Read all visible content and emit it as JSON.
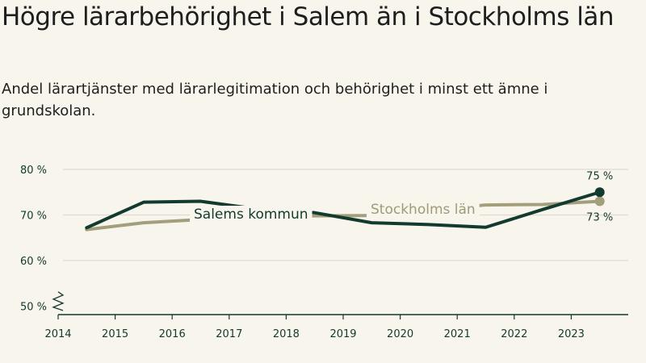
{
  "header": {
    "title": "Högre lärarbehörighet i Salem än i Stockholms län",
    "subtitle": "Andel lärartjänster med lärarlegitimation och behörighet i minst ett ämne i grundskolan."
  },
  "colors": {
    "background": "#f8f5ec",
    "salem": "#123a2e",
    "stockholm": "#a39e7c",
    "grid": "#dcdad2",
    "axis": "#123a2e"
  },
  "chart_data": {
    "type": "line",
    "title": "Högre lärarbehörighet i Salem än i Stockholms län",
    "subtitle": "Andel lärartjänster med lärarlegitimation och behörighet i minst ett ämne i grundskolan.",
    "xlabel": "",
    "ylabel": "",
    "xlim": [
      2014,
      2024
    ],
    "ylim": [
      49,
      80
    ],
    "x_ticks": [
      2014,
      2015,
      2016,
      2017,
      2018,
      2019,
      2020,
      2021,
      2022,
      2023
    ],
    "x_tick_labels": [
      "2014",
      "2015",
      "2016",
      "2017",
      "2018",
      "2019",
      "2020",
      "2021",
      "2022",
      "2023"
    ],
    "y_ticks": [
      50,
      60,
      70,
      80
    ],
    "y_tick_labels": [
      "50 %",
      "60 %",
      "70 %",
      "80 %"
    ],
    "axis_break": true,
    "grid": true,
    "series": [
      {
        "name": "Stockholms län",
        "label": "Stockholms län",
        "x": [
          2014.5,
          2015.5,
          2016.5,
          2017.5,
          2018.5,
          2019.5,
          2020.5,
          2021.5,
          2022.5,
          2023.5
        ],
        "values": [
          66.8,
          68.3,
          69.0,
          69.5,
          69.8,
          69.9,
          71.0,
          72.2,
          72.3,
          73.0
        ],
        "end_label": "73 %"
      },
      {
        "name": "Salems kommun",
        "label": "Salems kommun",
        "x": [
          2014.5,
          2015.5,
          2016.5,
          2017.5,
          2018.5,
          2019.5,
          2020.5,
          2021.5,
          2022.5,
          2023.5
        ],
        "values": [
          67.2,
          72.8,
          73.0,
          71.3,
          70.5,
          68.3,
          67.9,
          67.3,
          71.2,
          75.0
        ],
        "end_label": "75 %"
      }
    ]
  }
}
